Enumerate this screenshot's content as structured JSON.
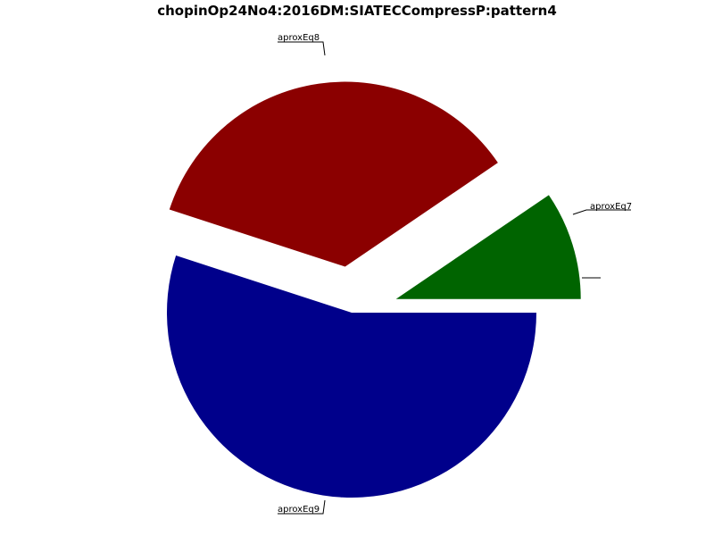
{
  "chart_data": {
    "type": "pie",
    "title": "chopinOp24No4:2016DM:SIATECCompressP:pattern4",
    "slices": [
      {
        "label": "aproxEq7",
        "value": 9.5,
        "color": "#006400",
        "exploded": true
      },
      {
        "label": "aproxEq8",
        "value": 35.5,
        "color": "#8b0000",
        "exploded": true
      },
      {
        "label": "aproxEq9",
        "value": 55.0,
        "color": "#00008b",
        "exploded": false
      }
    ],
    "extra_label": {
      "label": "",
      "note": "small leader line with empty label at right"
    }
  }
}
